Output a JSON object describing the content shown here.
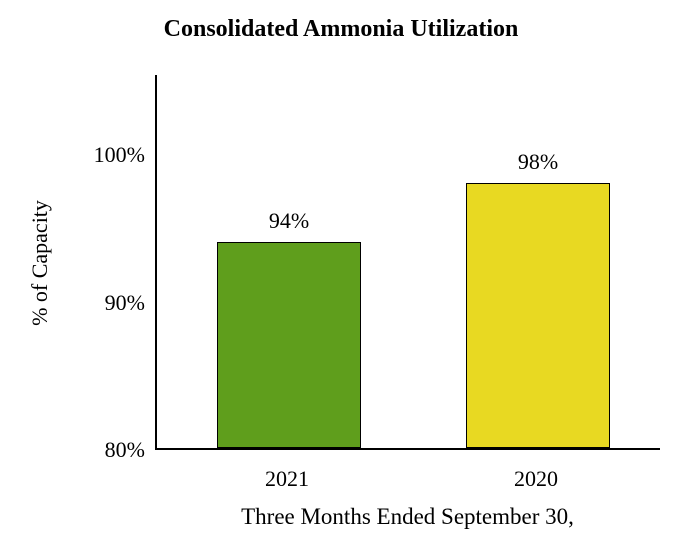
{
  "chart_data": {
    "type": "bar",
    "title": "Consolidated Ammonia Utilization",
    "xlabel": "Three Months Ended September 30,",
    "ylabel": "% of Capacity",
    "categories": [
      "2021",
      "2020"
    ],
    "values": [
      94,
      98
    ],
    "value_labels": [
      "94%",
      "98%"
    ],
    "bar_colors": [
      "#5f9e1c",
      "#e8d922"
    ],
    "bar_border_color": "#000000",
    "ylim": [
      80,
      105
    ],
    "yticks": [
      {
        "value": 100,
        "label": "100%"
      },
      {
        "value": 90,
        "label": "90%"
      },
      {
        "value": 80,
        "label": "80%"
      }
    ],
    "grid": false,
    "legend": "none",
    "background_color": "#ffffff"
  }
}
